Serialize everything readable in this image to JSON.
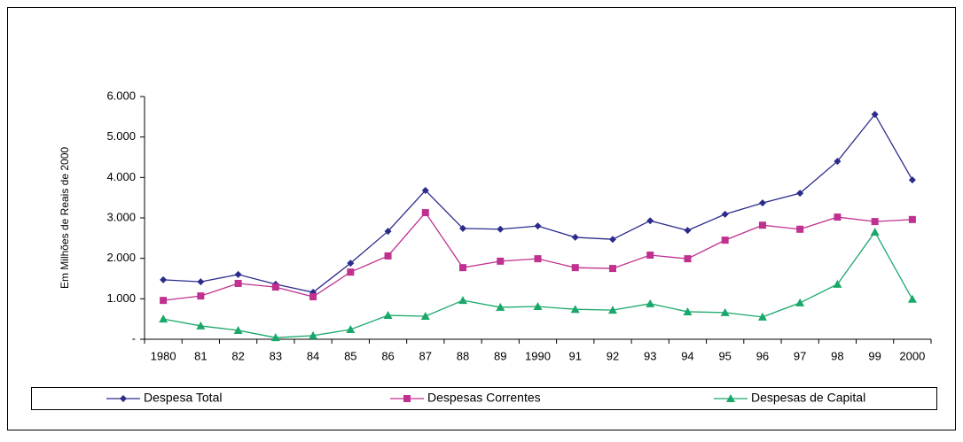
{
  "chart_data": {
    "type": "line",
    "y_label": "Em Milhões de Reais de 2000",
    "categories": [
      "1980",
      "81",
      "82",
      "83",
      "84",
      "85",
      "86",
      "87",
      "88",
      "89",
      "1990",
      "91",
      "92",
      "93",
      "94",
      "95",
      "96",
      "97",
      "98",
      "99",
      "2000"
    ],
    "series": [
      {
        "name": "Despesa Total",
        "color": "#2b2b8c",
        "marker": "diamond",
        "values": [
          1470,
          1420,
          1600,
          1360,
          1160,
          1880,
          2670,
          3680,
          2740,
          2720,
          2800,
          2520,
          2470,
          2930,
          2690,
          3090,
          3370,
          3610,
          4400,
          5560,
          3940
        ]
      },
      {
        "name": "Despesas Correntes",
        "color": "#c0308f",
        "marker": "square",
        "values": [
          960,
          1070,
          1380,
          1290,
          1050,
          1660,
          2060,
          3130,
          1770,
          1930,
          1990,
          1770,
          1750,
          2080,
          1990,
          2450,
          2820,
          2720,
          3020,
          2910,
          2960
        ]
      },
      {
        "name": "Despesas de Capital",
        "color": "#1aa86a",
        "marker": "triangle",
        "values": [
          500,
          330,
          220,
          40,
          90,
          240,
          590,
          570,
          960,
          790,
          810,
          740,
          720,
          880,
          680,
          660,
          550,
          900,
          1360,
          2650,
          990
        ]
      }
    ],
    "ylim": [
      0,
      6000
    ],
    "yticks": [
      {
        "value": 0,
        "label": "-"
      },
      {
        "value": 1000,
        "label": "1.000"
      },
      {
        "value": 2000,
        "label": "2.000"
      },
      {
        "value": 3000,
        "label": "3.000"
      },
      {
        "value": 4000,
        "label": "4.000"
      },
      {
        "value": 5000,
        "label": "5.000"
      },
      {
        "value": 6000,
        "label": "6.000"
      }
    ],
    "legend": "bottom"
  }
}
